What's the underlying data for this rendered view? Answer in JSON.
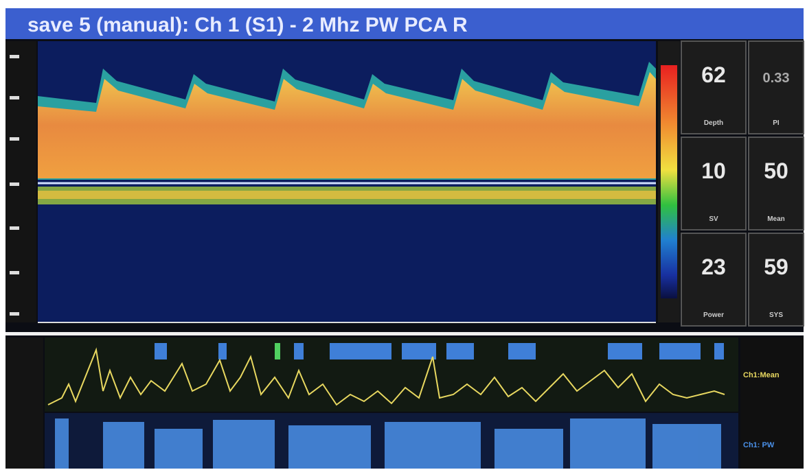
{
  "header": {
    "title": "save 5 (manual): Ch 1 (S1) - 2 Mhz PW   PCA R"
  },
  "readouts": [
    {
      "value": 62,
      "label": "Depth"
    },
    {
      "value": 0.33,
      "label": "PI"
    },
    {
      "value": 10,
      "label": "SV"
    },
    {
      "value": 50,
      "label": "Mean"
    },
    {
      "value": 23,
      "label": "Power"
    },
    {
      "value": 59,
      "label": "SYS"
    }
  ],
  "trends": {
    "mean_label": "Ch1:Mean",
    "pw_label": "Ch1: PW"
  }
}
